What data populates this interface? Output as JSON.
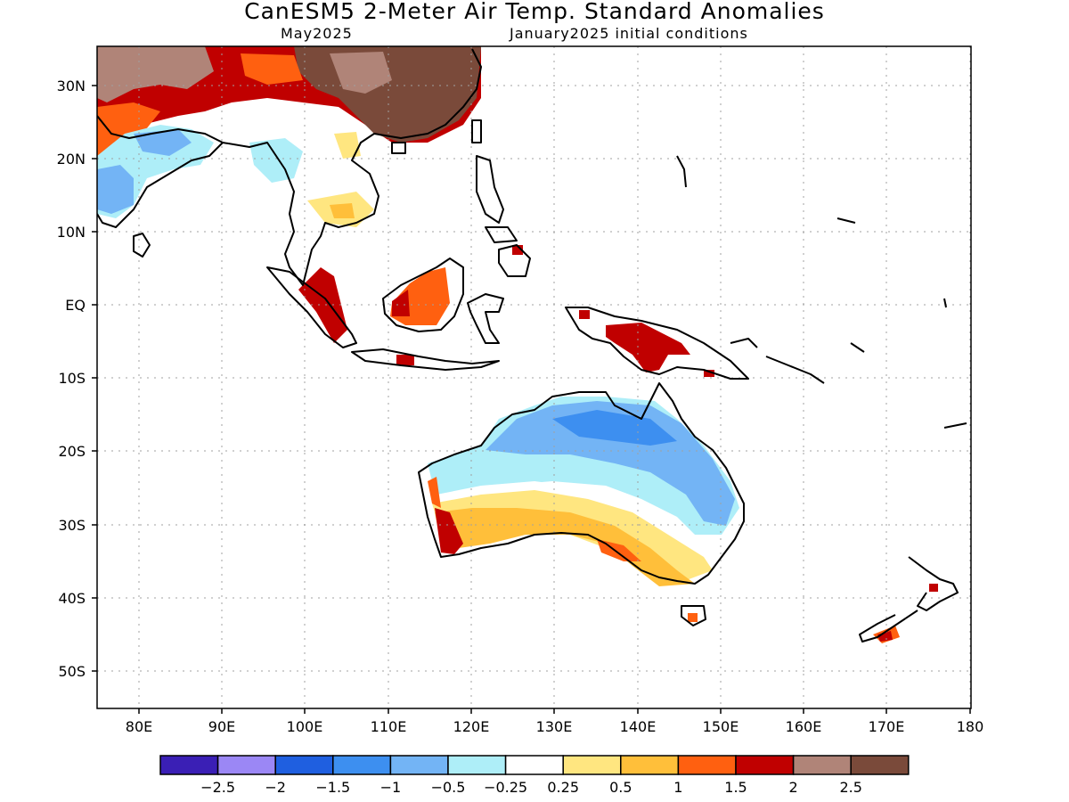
{
  "title": "CanESM5 2-Meter Air Temp. Standard Anomalies",
  "valid_month": "May2025",
  "initial_conditions": "January2025 initial conditions",
  "lat_labels": [
    "30N",
    "20N",
    "10N",
    "EQ",
    "10S",
    "20S",
    "30S",
    "40S",
    "50S"
  ],
  "lon_labels": [
    "80E",
    "90E",
    "100E",
    "110E",
    "120E",
    "130E",
    "140E",
    "150E",
    "160E",
    "170E",
    "180"
  ],
  "colorbar": {
    "colors": [
      "#3a1fb5",
      "#9b87f5",
      "#1f5fe0",
      "#3d8ff0",
      "#73b4f5",
      "#aeeef8",
      "#ffffff",
      "#ffe680",
      "#ffbf3a",
      "#ff6010",
      "#c00000",
      "#b08478",
      "#7a4a3a"
    ],
    "labels": [
      "−2.5",
      "−2",
      "−1.5",
      "−1",
      "−0.5",
      "−0.25",
      "0.25",
      "0.5",
      "1",
      "1.5",
      "2",
      "2.5"
    ]
  }
}
